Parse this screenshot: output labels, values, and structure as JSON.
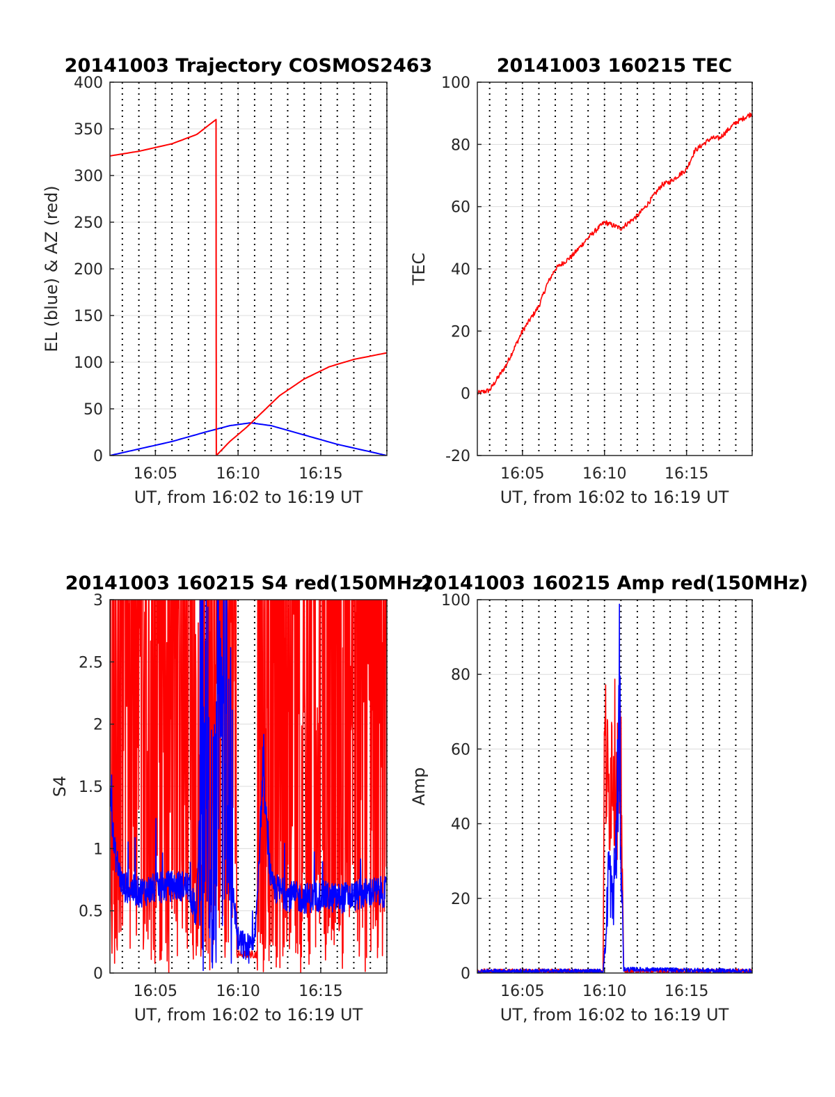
{
  "colors": {
    "el": "#0000ff",
    "az": "#ff0000",
    "tec": "#ff0000",
    "s4_red": "#ff0000",
    "s4_blue": "#0000ff",
    "amp_red": "#ff0000",
    "amp_blue": "#0000ff",
    "grid": "#dcdcdc",
    "axis": "#262626"
  },
  "chart_data": [
    {
      "type": "line",
      "title": "20141003 Trajectory COSMOS2463",
      "xlabel": "UT, from 16:02 to 16:19 UT",
      "ylabel": "EL (blue) & AZ (red)",
      "xlim": [
        "16:02:15",
        "16:19:00"
      ],
      "ylim": [
        0,
        400
      ],
      "xticks": [
        "16:05",
        "16:10",
        "16:15"
      ],
      "yticks": [
        0,
        50,
        100,
        150,
        200,
        250,
        300,
        350,
        400
      ],
      "x_minute_marks": [
        "16:03",
        "16:04",
        "16:05",
        "16:06",
        "16:07",
        "16:08",
        "16:09",
        "16:10",
        "16:11",
        "16:12",
        "16:13",
        "16:14",
        "16:15",
        "16:16",
        "16:17",
        "16:18",
        "16:19"
      ],
      "grid": true,
      "series": [
        {
          "color": "blue",
          "x": [
            "16:02:15",
            "16:04:00",
            "16:06:00",
            "16:08:00",
            "16:09:30",
            "16:10:45",
            "16:12:00",
            "16:14:00",
            "16:16:00",
            "16:18:00",
            "16:19:00"
          ],
          "values": [
            0,
            7,
            15,
            25,
            32,
            35,
            32,
            22,
            12,
            4,
            0
          ]
        },
        {
          "color": "red",
          "x": [
            "16:02:15",
            "16:04:00",
            "16:06:00",
            "16:07:30",
            "16:08:40",
            "16:08:41",
            "16:09:30",
            "16:10:30",
            "16:11:30",
            "16:12:30",
            "16:14:00",
            "16:15:30",
            "16:17:00",
            "16:19:00"
          ],
          "values": [
            321,
            326,
            334,
            344,
            360,
            0,
            15,
            30,
            47,
            64,
            82,
            95,
            103,
            110
          ]
        }
      ]
    },
    {
      "type": "line",
      "title": "20141003 160215 TEC",
      "xlabel": "UT, from 16:02 to 16:19 UT",
      "ylabel": "TEC",
      "xlim": [
        "16:02:15",
        "16:19:00"
      ],
      "ylim": [
        -20,
        100
      ],
      "xticks": [
        "16:05",
        "16:10",
        "16:15"
      ],
      "yticks": [
        -20,
        0,
        20,
        40,
        60,
        80,
        100
      ],
      "x_minute_marks": [
        "16:03",
        "16:04",
        "16:05",
        "16:06",
        "16:07",
        "16:08",
        "16:09",
        "16:10",
        "16:11",
        "16:12",
        "16:13",
        "16:14",
        "16:15",
        "16:16",
        "16:17",
        "16:18",
        "16:19"
      ],
      "grid": true,
      "series": [
        {
          "color": "red",
          "x": [
            "16:02:15",
            "16:03:00",
            "16:04:00",
            "16:05:00",
            "16:06:00",
            "16:06:30",
            "16:07:00",
            "16:08:00",
            "16:09:00",
            "16:10:00",
            "16:11:00",
            "16:12:00",
            "16:12:30",
            "16:13:30",
            "16:14:00",
            "16:15:00",
            "16:15:30",
            "16:16:30",
            "16:17:00",
            "16:18:00",
            "16:19:00"
          ],
          "values": [
            0,
            1,
            9,
            20,
            28,
            35,
            40,
            44,
            50,
            55,
            53,
            57,
            60,
            67,
            68,
            72,
            78,
            82,
            82,
            87,
            90
          ]
        }
      ]
    },
    {
      "type": "line",
      "title": "20141003 160215 S4 red(150MHz)",
      "xlabel": "UT, from 16:02 to 16:19 UT",
      "ylabel": "S4",
      "xlim": [
        "16:02:15",
        "16:19:00"
      ],
      "ylim": [
        0,
        3
      ],
      "xticks": [
        "16:05",
        "16:10",
        "16:15"
      ],
      "yticks": [
        0,
        0.5,
        1,
        1.5,
        2,
        2.5,
        3
      ],
      "x_minute_marks": [
        "16:03",
        "16:04",
        "16:05",
        "16:06",
        "16:07",
        "16:08",
        "16:09",
        "16:10",
        "16:11",
        "16:12",
        "16:13",
        "16:14",
        "16:15",
        "16:16",
        "16:17",
        "16:18",
        "16:19"
      ],
      "grid": true,
      "series": [
        {
          "color": "red",
          "note_visible": "red trace saturates at 3 with dense spikes between 16:02 and 16:09 and between 16:12 and 16:19; low plateau near 0.15 around 16:10:30",
          "x": [
            "16:02:15",
            "16:04:00",
            "16:06:00",
            "16:08:00",
            "16:09:00",
            "16:10:00",
            "16:10:30",
            "16:11:00",
            "16:12:00",
            "16:13:00",
            "16:15:00",
            "16:17:00",
            "16:19:00"
          ],
          "values": [
            3,
            3,
            3,
            3,
            3,
            0.2,
            0.15,
            0.15,
            3,
            3,
            3,
            3,
            3
          ]
        },
        {
          "color": "blue",
          "x": [
            "16:02:15",
            "16:02:30",
            "16:03:00",
            "16:04:00",
            "16:05:00",
            "16:06:00",
            "16:07:00",
            "16:07:30",
            "16:08:00",
            "16:08:30",
            "16:09:00",
            "16:09:30",
            "16:10:00",
            "16:10:30",
            "16:11:00",
            "16:11:30",
            "16:12:00",
            "16:13:00",
            "16:14:00",
            "16:15:00",
            "16:16:00",
            "16:17:00",
            "16:18:00",
            "16:19:00"
          ],
          "values": [
            1.5,
            1.0,
            0.7,
            0.65,
            0.68,
            0.7,
            0.7,
            0.45,
            3.0,
            0.3,
            3.0,
            0.9,
            0.25,
            0.2,
            0.2,
            1.6,
            0.7,
            0.62,
            0.6,
            0.62,
            0.6,
            0.62,
            0.65,
            0.65
          ]
        }
      ]
    },
    {
      "type": "line",
      "title": "20141003 160215 Amp red(150MHz)",
      "xlabel": "UT, from 16:02 to 16:19 UT",
      "ylabel": "Amp",
      "xlim": [
        "16:02:15",
        "16:19:00"
      ],
      "ylim": [
        0,
        100
      ],
      "xticks": [
        "16:05",
        "16:10",
        "16:15"
      ],
      "yticks": [
        0,
        20,
        40,
        60,
        80,
        100
      ],
      "x_minute_marks": [
        "16:03",
        "16:04",
        "16:05",
        "16:06",
        "16:07",
        "16:08",
        "16:09",
        "16:10",
        "16:11",
        "16:12",
        "16:13",
        "16:14",
        "16:15",
        "16:16",
        "16:17",
        "16:18",
        "16:19"
      ],
      "grid": true,
      "series": [
        {
          "color": "red",
          "x": [
            "16:02:15",
            "16:09:55",
            "16:10:00",
            "16:10:15",
            "16:10:30",
            "16:10:45",
            "16:11:00",
            "16:11:10",
            "16:19:00"
          ],
          "values": [
            0.5,
            0.5,
            73,
            55,
            72,
            60,
            61,
            0.5,
            0.5
          ]
        },
        {
          "color": "blue",
          "x": [
            "16:02:15",
            "16:09:55",
            "16:10:05",
            "16:10:15",
            "16:10:30",
            "16:10:45",
            "16:10:55",
            "16:11:00",
            "16:11:10",
            "16:19:00"
          ],
          "values": [
            0.5,
            0.5,
            10,
            35,
            20,
            45,
            84,
            40,
            1,
            0.5
          ]
        }
      ]
    }
  ]
}
